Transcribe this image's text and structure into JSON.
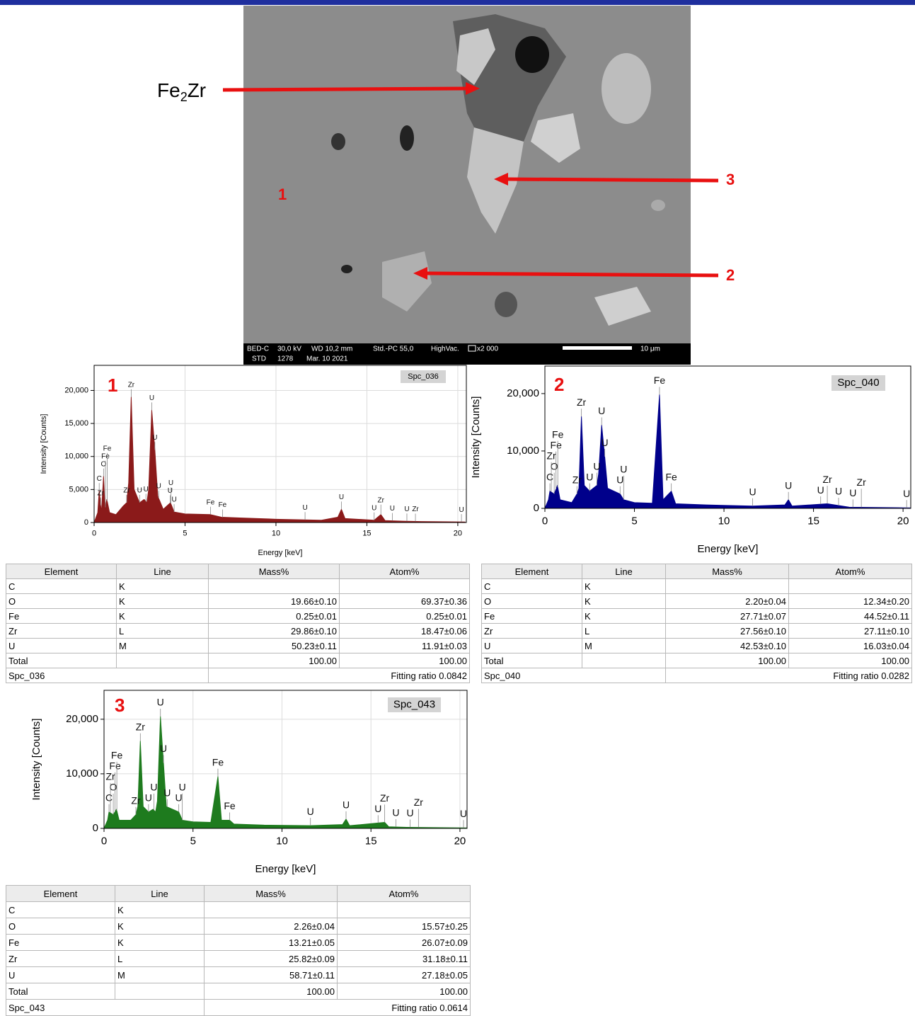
{
  "sem_image": {
    "info_line_1": [
      "BED-C",
      "30,0 kV",
      "WD 10,2 mm",
      "Std.-PC 55,0",
      "HighVac.",
      "x2 000"
    ],
    "info_line_2": [
      "STD",
      "1278",
      "Mar. 10 2021"
    ],
    "scale_bar": "10 μm",
    "phase_label": [
      "Fe",
      "2",
      "Zr"
    ],
    "point_labels": [
      "1",
      "2",
      "3"
    ]
  },
  "chart_data": [
    {
      "type": "line",
      "title": "1",
      "tag": "Spc_036",
      "x_label": "Energy [keV]",
      "y_label": "Intensity [Counts]",
      "color": "#8b1a1a",
      "grid": true,
      "x": [
        0,
        0.2,
        0.28,
        0.4,
        0.52,
        0.6,
        0.7,
        0.85,
        1.2,
        1.6,
        1.79,
        1.9,
        2.04,
        2.2,
        2.5,
        2.75,
        2.9,
        3.0,
        3.17,
        3.34,
        3.5,
        3.8,
        4.2,
        4.4,
        5,
        6.4,
        7,
        8,
        10,
        11.6,
        12.5,
        13.4,
        13.6,
        13.8,
        15.4,
        15.77,
        16,
        17,
        18,
        20,
        20.4
      ],
      "values": [
        0,
        1500,
        4800,
        1500,
        7000,
        2000,
        3500,
        1500,
        1200,
        2500,
        3000,
        6000,
        19000,
        5000,
        3000,
        3500,
        3000,
        5000,
        17000,
        11000,
        4000,
        2000,
        3000,
        1600,
        1300,
        1200,
        800,
        700,
        500,
        400,
        350,
        800,
        2000,
        600,
        350,
        1200,
        300,
        200,
        150,
        100,
        80
      ],
      "xlim": [
        0,
        20.47
      ],
      "ylim": [
        0,
        23800
      ],
      "xticks": [
        0,
        5,
        10,
        15,
        20
      ],
      "yticks": [
        0,
        {
          "value": 5000,
          "label": "5,000"
        },
        {
          "value": 10000,
          "label": "10,000"
        },
        {
          "value": 15000,
          "label": "15,000"
        },
        {
          "value": 20000,
          "label": "20,000"
        }
      ],
      "peak_labels": [
        {
          "label": "C",
          "x": 0.28
        },
        {
          "label": "O",
          "x": 0.52
        },
        {
          "label": "Zr",
          "x": 0.36
        },
        {
          "label": "Fe",
          "x": 0.62
        },
        {
          "label": "Fe",
          "x": 0.72
        },
        {
          "label": "Zr",
          "x": 1.79
        },
        {
          "label": "Zr",
          "x": 2.04
        },
        {
          "label": "U",
          "x": 2.5
        },
        {
          "label": "U",
          "x": 2.85
        },
        {
          "label": "U",
          "x": 3.17
        },
        {
          "label": "U",
          "x": 3.34
        },
        {
          "label": "U",
          "x": 3.55
        },
        {
          "label": "U",
          "x": 4.18
        },
        {
          "label": "U",
          "x": 4.22
        },
        {
          "label": "U",
          "x": 4.4
        },
        {
          "label": "Fe",
          "x": 6.4
        },
        {
          "label": "Fe",
          "x": 7.06
        },
        {
          "label": "U",
          "x": 11.6
        },
        {
          "label": "U",
          "x": 13.6
        },
        {
          "label": "U",
          "x": 15.4
        },
        {
          "label": "Zr",
          "x": 15.77
        },
        {
          "label": "U",
          "x": 16.4
        },
        {
          "label": "U",
          "x": 17.2
        },
        {
          "label": "Zr",
          "x": 17.67
        },
        {
          "label": "U",
          "x": 20.2
        }
      ]
    },
    {
      "type": "line",
      "title": "2",
      "tag": "Spc_040",
      "x_label": "Energy [keV]",
      "y_label": "Intensity [Counts]",
      "color": "#00008b",
      "grid": false,
      "x": [
        0,
        0.2,
        0.28,
        0.52,
        0.7,
        0.85,
        1.5,
        1.79,
        1.9,
        2.04,
        2.2,
        2.5,
        2.9,
        3.0,
        3.17,
        3.34,
        3.5,
        4.2,
        4.4,
        5,
        6.0,
        6.4,
        6.6,
        7.06,
        7.3,
        9,
        11.6,
        13.4,
        13.6,
        13.8,
        15.77,
        17,
        20,
        20.4
      ],
      "values": [
        0,
        1500,
        3000,
        2500,
        4000,
        1500,
        1000,
        2500,
        3500,
        16000,
        4000,
        3000,
        4000,
        6000,
        14500,
        9000,
        3500,
        2500,
        1500,
        1000,
        900,
        19800,
        1500,
        3000,
        800,
        600,
        400,
        600,
        1500,
        400,
        800,
        200,
        100,
        80
      ],
      "xlim": [
        0,
        20.43
      ],
      "ylim": [
        0,
        24800
      ],
      "xticks": [
        0,
        5,
        10,
        15,
        20
      ],
      "yticks": [
        0,
        {
          "value": 10000,
          "label": "10,000"
        },
        {
          "value": 20000,
          "label": "20,000"
        }
      ],
      "peak_labels": [
        {
          "label": "C",
          "x": 0.28
        },
        {
          "label": "O",
          "x": 0.52
        },
        {
          "label": "Zr",
          "x": 0.36
        },
        {
          "label": "Fe",
          "x": 0.62
        },
        {
          "label": "Fe",
          "x": 0.72
        },
        {
          "label": "Zr",
          "x": 1.79
        },
        {
          "label": "Zr",
          "x": 2.04
        },
        {
          "label": "U",
          "x": 2.5
        },
        {
          "label": "U",
          "x": 2.9
        },
        {
          "label": "U",
          "x": 3.17
        },
        {
          "label": "U",
          "x": 3.34
        },
        {
          "label": "U",
          "x": 4.2
        },
        {
          "label": "U",
          "x": 4.4
        },
        {
          "label": "Fe",
          "x": 6.4
        },
        {
          "label": "Fe",
          "x": 7.06
        },
        {
          "label": "U",
          "x": 11.6
        },
        {
          "label": "U",
          "x": 13.6
        },
        {
          "label": "U",
          "x": 15.4
        },
        {
          "label": "Zr",
          "x": 15.77
        },
        {
          "label": "U",
          "x": 16.4
        },
        {
          "label": "U",
          "x": 17.2
        },
        {
          "label": "Zr",
          "x": 17.67
        },
        {
          "label": "U",
          "x": 20.2
        }
      ]
    },
    {
      "type": "line",
      "title": "3",
      "tag": "Spc_043",
      "x_label": "Energy [keV]",
      "y_label": "Intensity [Counts]",
      "color": "#1e7b1e",
      "grid": true,
      "x": [
        0,
        0.2,
        0.28,
        0.52,
        0.7,
        0.85,
        1.5,
        1.79,
        1.9,
        2.04,
        2.2,
        2.5,
        2.75,
        2.9,
        3.0,
        3.17,
        3.34,
        3.5,
        4.2,
        4.4,
        5,
        6.0,
        6.4,
        6.6,
        7.06,
        7.3,
        9,
        11.6,
        13.4,
        13.6,
        13.8,
        15.77,
        16,
        17,
        20,
        20.4
      ],
      "values": [
        0,
        1500,
        3000,
        2500,
        3500,
        1500,
        1500,
        2500,
        4000,
        16000,
        4000,
        3000,
        3500,
        3000,
        5000,
        20500,
        12000,
        4000,
        3000,
        1500,
        1200,
        1100,
        9500,
        1500,
        1500,
        800,
        600,
        500,
        700,
        1700,
        500,
        1100,
        300,
        200,
        100,
        80
      ],
      "xlim": [
        0,
        20.4
      ],
      "ylim": [
        0,
        25300
      ],
      "xticks": [
        0,
        5,
        10,
        15,
        20
      ],
      "yticks": [
        0,
        {
          "value": 10000,
          "label": "10,000"
        },
        {
          "value": 20000,
          "label": "20,000"
        }
      ],
      "peak_labels": [
        {
          "label": "C",
          "x": 0.28
        },
        {
          "label": "O",
          "x": 0.52
        },
        {
          "label": "Zr",
          "x": 0.36
        },
        {
          "label": "Fe",
          "x": 0.62
        },
        {
          "label": "Fe",
          "x": 0.72
        },
        {
          "label": "Zr",
          "x": 1.79
        },
        {
          "label": "Zr",
          "x": 2.04
        },
        {
          "label": "U",
          "x": 2.5
        },
        {
          "label": "U",
          "x": 2.8
        },
        {
          "label": "U",
          "x": 3.17
        },
        {
          "label": "U",
          "x": 3.34
        },
        {
          "label": "U",
          "x": 3.55
        },
        {
          "label": "U",
          "x": 4.2
        },
        {
          "label": "U",
          "x": 4.4
        },
        {
          "label": "Fe",
          "x": 6.4
        },
        {
          "label": "Fe",
          "x": 7.06
        },
        {
          "label": "U",
          "x": 11.6
        },
        {
          "label": "U",
          "x": 13.6
        },
        {
          "label": "U",
          "x": 15.4
        },
        {
          "label": "Zr",
          "x": 15.77
        },
        {
          "label": "U",
          "x": 16.4
        },
        {
          "label": "U",
          "x": 17.2
        },
        {
          "label": "Zr",
          "x": 17.67
        },
        {
          "label": "U",
          "x": 20.2
        }
      ]
    }
  ],
  "tables": [
    {
      "header": [
        "Element",
        "Line",
        "Mass%",
        "Atom%"
      ],
      "rows": [
        [
          "C",
          "K"
        ],
        [
          "O",
          "K",
          "19.66±0.10",
          "69.37±0.36"
        ],
        [
          "Fe",
          "K",
          "0.25±0.01",
          "0.25±0.01"
        ],
        [
          "Zr",
          "L",
          "29.86±0.10",
          "18.47±0.06"
        ],
        [
          "U",
          "M",
          "50.23±0.11",
          "11.91±0.03"
        ],
        [
          "Total",
          null,
          "100.00",
          "100.00"
        ]
      ],
      "footer": [
        "Spc_036",
        "Fitting ratio 0.0842"
      ]
    },
    {
      "header": [
        "Element",
        "Line",
        "Mass%",
        "Atom%"
      ],
      "rows": [
        [
          "C",
          "K"
        ],
        [
          "O",
          "K",
          "2.20±0.04",
          "12.34±0.20"
        ],
        [
          "Fe",
          "K",
          "27.71±0.07",
          "44.52±0.11"
        ],
        [
          "Zr",
          "L",
          "27.56±0.10",
          "27.11±0.10"
        ],
        [
          "U",
          "M",
          "42.53±0.10",
          "16.03±0.04"
        ],
        [
          "Total",
          null,
          "100.00",
          "100.00"
        ]
      ],
      "footer": [
        "Spc_040",
        "Fitting ratio 0.0282"
      ]
    },
    {
      "header": [
        "Element",
        "Line",
        "Mass%",
        "Atom%"
      ],
      "rows": [
        [
          "C",
          "K"
        ],
        [
          "O",
          "K",
          "2.26±0.04",
          "15.57±0.25"
        ],
        [
          "Fe",
          "K",
          "13.21±0.05",
          "26.07±0.09"
        ],
        [
          "Zr",
          "L",
          "25.82±0.09",
          "31.18±0.11"
        ],
        [
          "U",
          "M",
          "58.71±0.11",
          "27.18±0.05"
        ],
        [
          "Total",
          null,
          "100.00",
          "100.00"
        ]
      ],
      "footer": [
        "Spc_043",
        "Fitting ratio 0.0614"
      ]
    }
  ]
}
